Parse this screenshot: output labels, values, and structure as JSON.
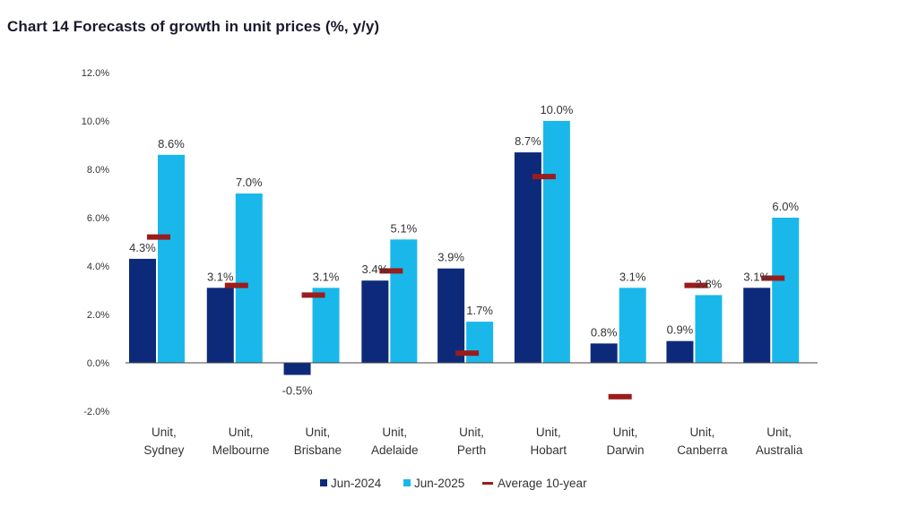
{
  "chart_data": {
    "type": "bar",
    "title": "Chart 14 Forecasts of growth in unit prices (%, y/y)",
    "categories": [
      [
        "Unit,",
        "Sydney"
      ],
      [
        "Unit,",
        "Melbourne"
      ],
      [
        "Unit,",
        "Brisbane"
      ],
      [
        "Unit,",
        "Adelaide"
      ],
      [
        "Unit,",
        "Perth"
      ],
      [
        "Unit,",
        "Hobart"
      ],
      [
        "Unit,",
        "Darwin"
      ],
      [
        "Unit,",
        "Canberra"
      ],
      [
        "Unit,",
        "Australia"
      ]
    ],
    "series": [
      {
        "name": "Jun-2024",
        "kind": "bar",
        "color": "#0d2a7a",
        "values": [
          4.3,
          3.1,
          -0.5,
          3.4,
          3.9,
          8.7,
          0.8,
          0.9,
          3.1
        ],
        "labels": [
          "4.3%",
          "3.1%",
          "-0.5%",
          "3.4%",
          "3.9%",
          "8.7%",
          "0.8%",
          "0.9%",
          "3.1%"
        ]
      },
      {
        "name": "Jun-2025",
        "kind": "bar",
        "color": "#1ab8ea",
        "values": [
          8.6,
          7.0,
          3.1,
          5.1,
          1.7,
          10.0,
          3.1,
          2.8,
          6.0
        ],
        "labels": [
          "8.6%",
          "7.0%",
          "3.1%",
          "5.1%",
          "1.7%",
          "10.0%",
          "3.1%",
          "2.8%",
          "6.0%"
        ]
      },
      {
        "name": "Average 10-year",
        "kind": "marker",
        "color": "#9b1c1c",
        "values": [
          5.2,
          3.2,
          2.8,
          3.8,
          0.4,
          7.7,
          -1.4,
          3.2,
          3.5
        ]
      }
    ],
    "yticks": [
      "12.0%",
      "10.0%",
      "8.0%",
      "6.0%",
      "4.0%",
      "2.0%",
      "0.0%",
      "-2.0%"
    ],
    "ylim": [
      -2,
      12
    ],
    "legend_position": "bottom"
  }
}
